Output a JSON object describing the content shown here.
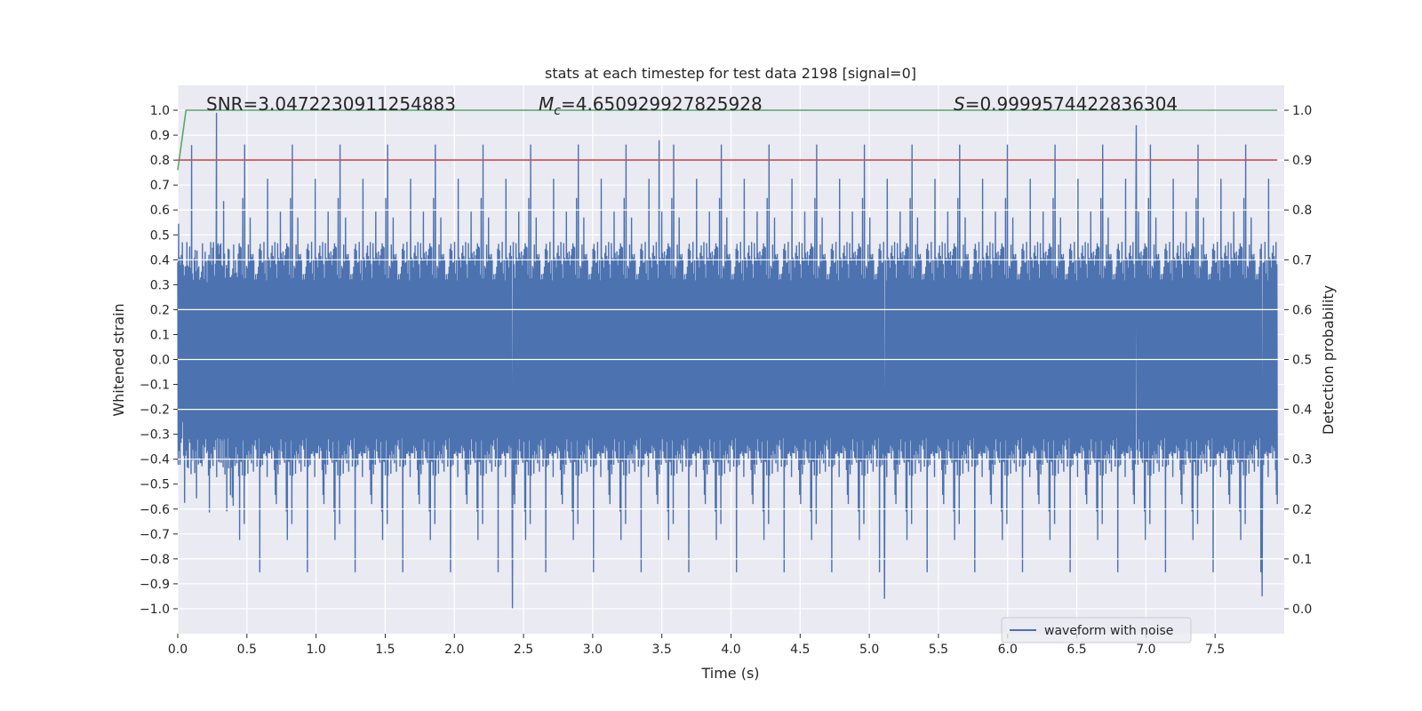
{
  "chart_data": {
    "type": "line",
    "title": "stats at each timestep for test data 2198 [signal=0]",
    "xlabel": "Time (s)",
    "ylabel": "Whitened strain",
    "y2label": "Detection probability",
    "xlim": [
      0.0,
      8.0
    ],
    "ylim": [
      -1.1,
      1.1
    ],
    "y2lim": [
      -0.05,
      1.05
    ],
    "x_ticks": [
      "0.0",
      "0.5",
      "1.0",
      "1.5",
      "2.0",
      "2.5",
      "3.0",
      "3.5",
      "4.0",
      "4.5",
      "5.0",
      "5.5",
      "6.0",
      "6.5",
      "7.0",
      "7.5"
    ],
    "y_ticks": [
      "1.0",
      "0.9",
      "0.8",
      "0.7",
      "0.6",
      "0.5",
      "0.4",
      "0.3",
      "0.2",
      "0.1",
      "0.0",
      "−0.1",
      "−0.2",
      "−0.3",
      "−0.4",
      "−0.5",
      "−0.6",
      "−0.7",
      "−0.8",
      "−0.9",
      "−1.0"
    ],
    "y2_ticks": [
      "1.0",
      "0.9",
      "0.8",
      "0.7",
      "0.6",
      "0.5",
      "0.4",
      "0.3",
      "0.2",
      "0.1",
      "0.0"
    ],
    "grid": true,
    "legend_position": "lower-right",
    "series": [
      {
        "name": "waveform with noise",
        "axis": "left",
        "color": "#4c72b0",
        "kind": "noisy-waveform",
        "approx_envelope": {
          "typical_min": -0.45,
          "typical_max": 0.45,
          "peak_max": 0.99,
          "peak_min": -1.0
        }
      },
      {
        "axis": "right",
        "color": "#55a868",
        "x": [
          0.0,
          0.06,
          7.95
        ],
        "y": [
          0.88,
          1.0,
          1.0
        ]
      },
      {
        "axis": "right",
        "color": "#c44e52",
        "x": [
          0.0,
          7.95
        ],
        "y": [
          0.9,
          0.9
        ]
      }
    ],
    "annotations": {
      "snr": "SNR=3.0472230911254883",
      "mc_symbol": "M",
      "mc_sub": "c",
      "mc_value": "=4.650929927825928",
      "s_symbol": "S",
      "s_value": "=0.9999574422836304"
    },
    "colors": {
      "background": "#eaeaf2",
      "grid": "#ffffff",
      "waveform": "#4c72b0",
      "probability": "#55a868",
      "threshold": "#c44e52"
    }
  }
}
